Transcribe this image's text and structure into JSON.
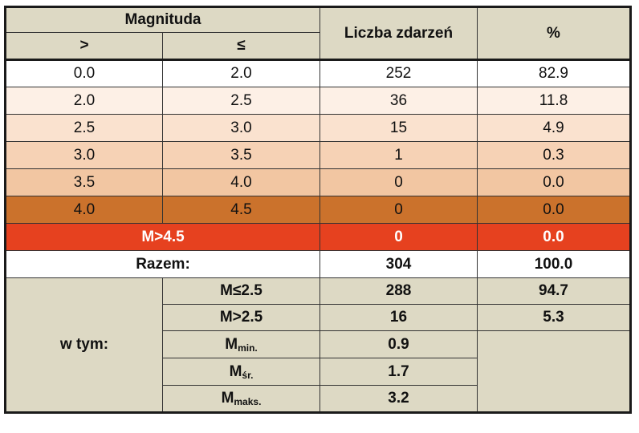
{
  "header": {
    "magnitude": "Magnituda",
    "gt": ">",
    "le": "≤",
    "count": "Liczba zdarzeń",
    "pct": "%"
  },
  "rows": [
    {
      "from": "0.0",
      "to": "2.0",
      "count": "252",
      "pct": "82.9",
      "color": "#ffffff"
    },
    {
      "from": "2.0",
      "to": "2.5",
      "count": "36",
      "pct": "11.8",
      "color": "#fdf0e6"
    },
    {
      "from": "2.5",
      "to": "3.0",
      "count": "15",
      "pct": "4.9",
      "color": "#fae2cf"
    },
    {
      "from": "3.0",
      "to": "3.5",
      "count": "1",
      "pct": "0.3",
      "color": "#f6d2b5"
    },
    {
      "from": "3.5",
      "to": "4.0",
      "count": "0",
      "pct": "0.0",
      "color": "#f2c6a2"
    },
    {
      "from": "4.0",
      "to": "4.5",
      "count": "0",
      "pct": "0.0",
      "color": "#cb722c"
    }
  ],
  "over": {
    "label": "M>4.5",
    "count": "0",
    "pct": "0.0",
    "color": "#e6411f"
  },
  "total": {
    "label": "Razem:",
    "count": "304",
    "pct": "100.0"
  },
  "breakdown": {
    "label": "w tym:",
    "le25": {
      "label": "M≤2.5",
      "count": "288",
      "pct": "94.7"
    },
    "gt25": {
      "label": "M>2.5",
      "count": "16",
      "pct": "5.3"
    },
    "min": {
      "label": "M",
      "sub": "min.",
      "value": "0.9"
    },
    "avg": {
      "label": "M",
      "sub": "śr.",
      "value": "1.7"
    },
    "max": {
      "label": "M",
      "sub": "maks.",
      "value": "3.2"
    }
  }
}
